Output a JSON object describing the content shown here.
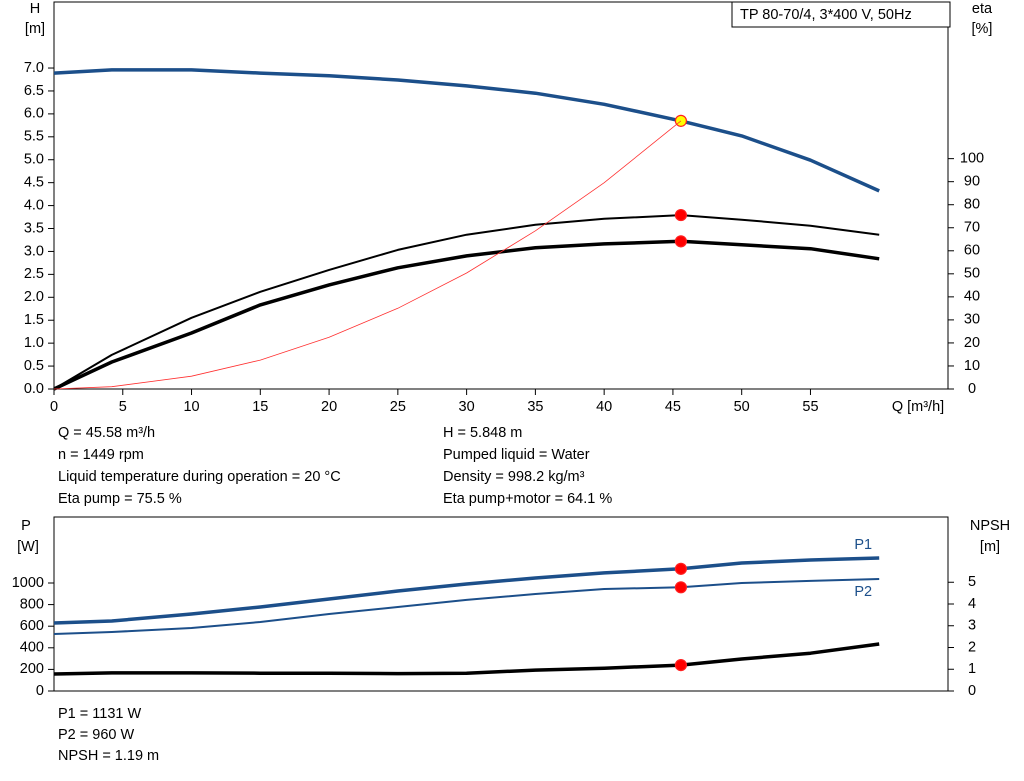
{
  "chart_data": [
    {
      "type": "line",
      "title": "TP 80-70/4, 3*400 V, 50Hz",
      "ylabel": "H",
      "yunit": "[m]",
      "y2label": "eta",
      "y2unit": "[%]",
      "xlabel": "Q [m³/h]",
      "x": [
        0,
        4.2,
        10,
        15,
        20,
        25,
        30,
        35,
        40,
        45.58,
        50,
        55,
        60
      ],
      "xlim": [
        0,
        65
      ],
      "xticks": [
        0,
        5,
        10,
        15,
        20,
        25,
        30,
        35,
        40,
        45,
        50,
        55
      ],
      "ylim": [
        0,
        8.44
      ],
      "yticks": [
        {
          "value": 0,
          "label": "0.0"
        },
        0.5,
        {
          "value": 1,
          "label": "1.0"
        },
        1.5,
        {
          "value": 2,
          "label": "2.0"
        },
        2.5,
        {
          "value": 3,
          "label": "3.0"
        },
        3.5,
        {
          "value": 4,
          "label": "4.0"
        },
        4.5,
        {
          "value": 5,
          "label": "5.0"
        },
        5.5,
        {
          "value": 6,
          "label": "6.0"
        },
        6.5,
        {
          "value": 7,
          "label": "7.0"
        }
      ],
      "y2lim": [
        0,
        168
      ],
      "y2ticks": [
        0,
        10,
        20,
        30,
        40,
        50,
        60,
        70,
        80,
        90,
        100
      ],
      "marker_x": 45.58,
      "series": [
        {
          "color": "#1c4f8a",
          "values": [
            6.89,
            6.96,
            6.96,
            6.89,
            6.83,
            6.74,
            6.61,
            6.45,
            6.21,
            5.848,
            5.52,
            4.99,
            4.32
          ],
          "marker_color": "#ffff00"
        },
        {
          "color": "#000000",
          "axis": "y2",
          "values": [
            0,
            14.8,
            30.9,
            42.2,
            51.7,
            60.4,
            67.0,
            71.3,
            73.9,
            75.5,
            73.5,
            70.9,
            67.0
          ],
          "marker_color": "#ff0000"
        },
        {
          "color": "#000000",
          "axis": "y2",
          "values": [
            0,
            11.7,
            24.3,
            36.5,
            45.2,
            52.6,
            57.8,
            61.3,
            63.0,
            64.1,
            62.6,
            60.9,
            56.5
          ],
          "marker_color": "#ff0000"
        },
        {
          "color": "#ff3030",
          "values": [
            0,
            0.05,
            0.28,
            0.63,
            1.13,
            1.76,
            2.53,
            3.45,
            4.5,
            5.848,
            null,
            null,
            null
          ]
        }
      ],
      "info": [
        [
          "Q = 45.58 m³/h",
          "n = 1449 rpm",
          "Liquid temperature during operation = 20 °C",
          "Eta pump = 75.5 %"
        ],
        [
          "H = 5.848 m",
          "Pumped liquid = Water",
          "Density = 998.2 kg/m³",
          "Eta pump+motor = 64.1 %"
        ]
      ]
    },
    {
      "type": "line",
      "ylabel": "P",
      "yunit": "[W]",
      "y2label": "NPSH",
      "y2unit": "[m]",
      "x": [
        0,
        4.2,
        10,
        15,
        20,
        25,
        30,
        35,
        40,
        45.58,
        50,
        55,
        60
      ],
      "xlim": [
        0,
        65
      ],
      "ylim": [
        0,
        1611
      ],
      "yticks": [
        0,
        200,
        400,
        600,
        800,
        1000
      ],
      "y2lim": [
        0,
        8
      ],
      "y2ticks": [
        0,
        1,
        2,
        3,
        4,
        5
      ],
      "marker_x": 45.58,
      "series": [
        {
          "name": "P1",
          "color": "#1c4f8a",
          "values": [
            630,
            648,
            713,
            778,
            852,
            926,
            991,
            1046,
            1093,
            1131,
            1185,
            1213,
            1231
          ],
          "marker_color": "#ff0000"
        },
        {
          "name": "P2",
          "color": "#1c4f8a",
          "values": [
            528,
            546,
            583,
            639,
            713,
            778,
            843,
            898,
            944,
            960,
            1000,
            1019,
            1037
          ],
          "marker_color": "#ff0000"
        },
        {
          "color": "#000000",
          "axis": "y2",
          "values": [
            0.78,
            0.83,
            0.83,
            0.82,
            0.82,
            0.8,
            0.82,
            0.96,
            1.05,
            1.19,
            1.47,
            1.74,
            2.16
          ],
          "marker_color": "#ff0000"
        }
      ],
      "info": [
        [
          "P1 = 1131 W",
          "P2 = 960 W",
          "NPSH = 1.19 m"
        ]
      ]
    }
  ]
}
